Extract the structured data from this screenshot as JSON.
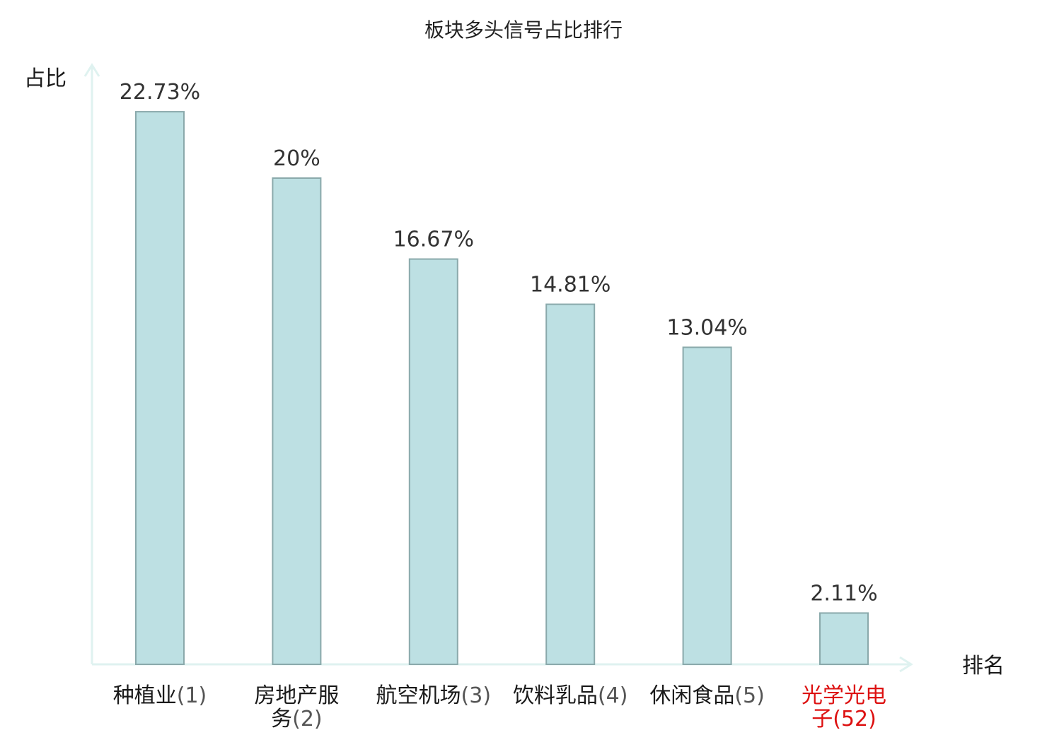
{
  "chart_data": {
    "type": "bar",
    "title": "板块多头信号占比排行",
    "ylabel": "占比",
    "xlabel": "排名",
    "ylim": [
      0,
      25
    ],
    "grid": false,
    "legend": "none",
    "categories": [
      {
        "name": "种植业",
        "rank": "(1)",
        "highlight": false
      },
      {
        "name": "房地产服务",
        "rank": "(2)",
        "highlight": false
      },
      {
        "name": "航空机场",
        "rank": "(3)",
        "highlight": false
      },
      {
        "name": "饮料乳品",
        "rank": "(4)",
        "highlight": false
      },
      {
        "name": "休闲食品",
        "rank": "(5)",
        "highlight": false
      },
      {
        "name": "光学光电子",
        "rank": "(52)",
        "highlight": true
      }
    ],
    "values": [
      22.73,
      20,
      16.67,
      14.81,
      13.04,
      2.11
    ],
    "value_labels": [
      "22.73%",
      "20%",
      "16.67%",
      "14.81%",
      "13.04%",
      "2.11%"
    ],
    "colors": {
      "bar_fill": "#bde0e3",
      "bar_stroke": "#8aa9ab",
      "axis": "#dff2f0",
      "highlight_text": "#dd1111"
    }
  }
}
